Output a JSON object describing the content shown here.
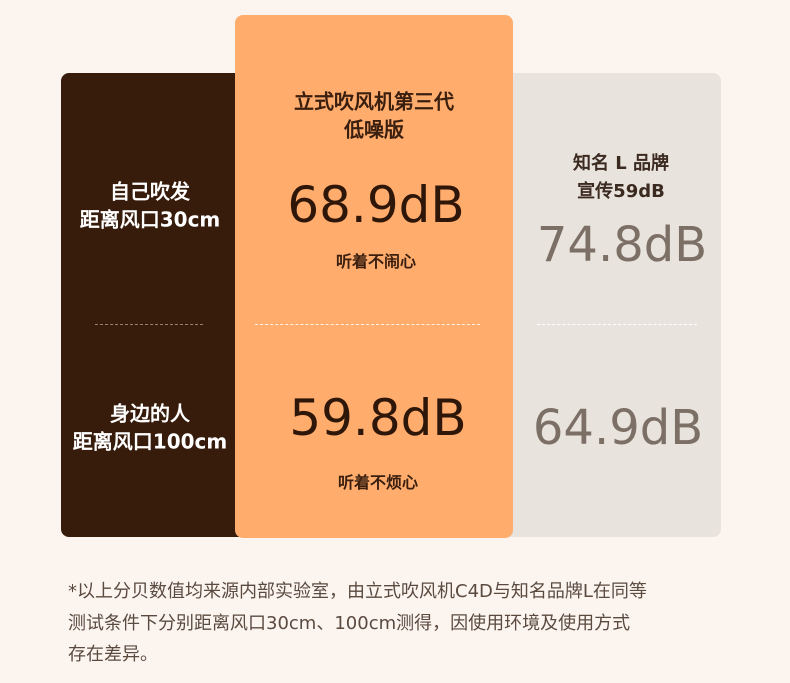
{
  "rows": [
    {
      "label": [
        "自己吹发",
        "距离风口30cm"
      ]
    },
    {
      "label": [
        "身边的人",
        "距离风口100cm"
      ]
    }
  ],
  "product": {
    "title": [
      "立式吹风机第三代",
      "低噪版"
    ],
    "cells": [
      {
        "value": "68.9dB",
        "note": "听着不闹心"
      },
      {
        "value": "59.8dB",
        "note": "听着不烦心"
      }
    ]
  },
  "competitor": {
    "title": [
      "知名 L 品牌",
      "宣传59dB"
    ],
    "cells": [
      {
        "value": "74.8dB"
      },
      {
        "value": "64.9dB"
      }
    ]
  },
  "footnote": [
    "*以上分贝数值均来源内部实验室，由立式吹风机C4D与知名品牌L在同等",
    "测试条件下分别距离风口30cm、100cm测得，因使用环境及使用方式",
    "存在差异。"
  ]
}
